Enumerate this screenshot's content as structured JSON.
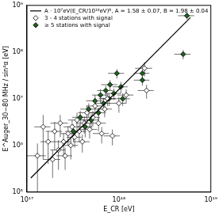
{
  "chart_data": {
    "type": "scatter",
    "x_label": "E_CR [eV]",
    "y_label": "E^Auger_30−80 MHz / sin²α [eV]",
    "log": true,
    "grid": false,
    "legend": "upper left",
    "xlim": [
      1e+17,
      1e+19
    ],
    "xticks": [
      {
        "value": 1e+17,
        "label": "10¹⁷"
      },
      {
        "value": 1e+18,
        "label": "10¹⁸"
      },
      {
        "value": 1e+19,
        "label": "10¹⁹"
      }
    ],
    "ylim": [
      100000.0,
      1000000000.0
    ],
    "yticks": [
      {
        "value": 100000.0,
        "label": "10⁵"
      },
      {
        "value": 1000000.0,
        "label": "10⁶"
      },
      {
        "value": 10000000.0,
        "label": "10⁷"
      },
      {
        "value": 100000000.0,
        "label": "10⁸"
      },
      {
        "value": 1000000000.0,
        "label": "10⁹"
      }
    ],
    "series": [
      {
        "name": "A · 10⁷eV(E_CR/10¹⁸eV)ᴮ, A = 1.58 ± 0.07, B = 1.98 ± 0.04",
        "type": "line",
        "color": "#000000",
        "marker": "none",
        "line_style": "solid",
        "x": [
          1.1e+17,
          6e+18
        ],
        "values": [
          200000.0,
          550000000.0
        ]
      },
      {
        "name": "3 - 4 stations with signal",
        "type": "scatter",
        "color": "#ffffff",
        "marker": "diamond",
        "x": [
          1.7e+17,
          1.9e+17,
          2e+17,
          2.2e+17,
          2.3e+17,
          2.5e+17,
          2.6e+17,
          2.8e+17,
          3e+17,
          3.1e+17,
          3.3e+17,
          3.5e+17,
          3.7e+17,
          4e+17,
          4.2e+17,
          4.5e+17,
          4.8e+17,
          5.2e+17,
          5.5e+17,
          6e+17,
          6.5e+17,
          7e+17,
          7.5e+17,
          8.5e+17,
          1e+18,
          1.2e+18,
          2e+18,
          1.9e+18,
          1.5e+17,
          1.3e+17
        ],
        "values": [
          1200000.0,
          500000.0,
          2000000.0,
          800000.0,
          3000000.0,
          1200000.0,
          600000.0,
          1800000.0,
          1000000.0,
          2500000.0,
          1500000.0,
          3500000.0,
          2000000.0,
          1200000.0,
          3000000.0,
          5000000.0,
          2200000.0,
          4000000.0,
          7000000.0,
          3000000.0,
          1800000.0,
          6000000.0,
          10000000.0,
          1600000.0,
          8000000.0,
          12000000.0,
          15000000.0,
          45000000.0,
          2500000.0,
          600000.0
        ],
        "x_err": [
          3e+16,
          4e+16,
          4e+16,
          4e+16,
          5e+16,
          5e+16,
          5e+16,
          5e+16,
          6e+16,
          6e+16,
          6e+16,
          7e+16,
          7e+16,
          8e+16,
          8e+16,
          9e+16,
          1e+17,
          1e+17,
          1.1e+17,
          1.2e+17,
          1.3e+17,
          1.4e+17,
          1.5e+17,
          1.7e+17,
          2e+17,
          2.4e+17,
          4e+17,
          4e+17,
          3e+16,
          3e+16
        ],
        "y_err": [
          800000.0,
          300000.0,
          1200000.0,
          500000.0,
          1500000.0,
          600000.0,
          300000.0,
          800000.0,
          500000.0,
          1000000.0,
          600000.0,
          1500000.0,
          800000.0,
          500000.0,
          1200000.0,
          2000000.0,
          800000.0,
          1500000.0,
          2500000.0,
          1000000.0,
          700000.0,
          2000000.0,
          3000000.0,
          600000.0,
          3000000.0,
          4000000.0,
          5000000.0,
          15000000.0,
          2000000.0,
          500000.0
        ]
      },
      {
        "name": "≥ 5 stations with signal",
        "type": "scatter",
        "color": "#1f5f1f",
        "marker": "diamond",
        "x": [
          3.2e+17,
          3.8e+17,
          4.3e+17,
          4.7e+17,
          5e+17,
          5.5e+17,
          6e+17,
          6.3e+17,
          6.8e+17,
          7.2e+17,
          7.8e+17,
          8e+17,
          8.8e+17,
          9.5e+17,
          1.05e+18,
          1.1e+18,
          1.8e+18,
          1.8e+18,
          5e+18,
          5.5e+18
        ],
        "values": [
          2000000.0,
          4000000.0,
          2500000.0,
          6000000.0,
          3500000.0,
          9000000.0,
          5000000.0,
          12000000.0,
          8000000.0,
          15000000.0,
          10000000.0,
          20000000.0,
          13000000.0,
          35000000.0,
          18000000.0,
          10000000.0,
          35000000.0,
          25000000.0,
          90000000.0,
          600000000.0
        ],
        "x_err": [
          6e+16,
          7e+16,
          8e+16,
          9e+16,
          1e+17,
          1.1e+17,
          1.2e+17,
          1.2e+17,
          1.3e+17,
          1.4e+17,
          1.5e+17,
          1.6e+17,
          1.7e+17,
          1.9e+17,
          2e+17,
          2.2e+17,
          3.5e+17,
          3.5e+17,
          1e+18,
          1.1e+18
        ],
        "y_err": [
          800000.0,
          1500000.0,
          1000000.0,
          2000000.0,
          1200000.0,
          3000000.0,
          1500000.0,
          4000000.0,
          2500000.0,
          4000000.0,
          3000000.0,
          5000000.0,
          3500000.0,
          8000000.0,
          5000000.0,
          3000000.0,
          8000000.0,
          6000000.0,
          20000000.0,
          100000000.0
        ]
      }
    ]
  }
}
